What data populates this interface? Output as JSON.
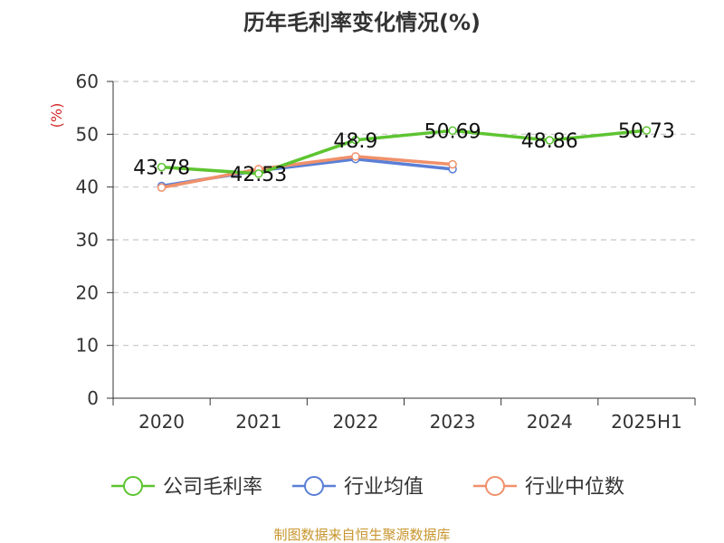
{
  "chart_data": {
    "type": "line",
    "title": "历年毛利率变化情况(%)",
    "ylabel": "(%)",
    "xlabel": "",
    "categories": [
      "2020",
      "2021",
      "2022",
      "2023",
      "2024",
      "2025H1"
    ],
    "ylim": [
      0,
      60
    ],
    "yticks": [
      "0",
      "10",
      "20",
      "30",
      "40",
      "50",
      "60"
    ],
    "grid": true,
    "legend_position": "bottom",
    "series": [
      {
        "name": "公司毛利率",
        "color": "#5dc431",
        "values": [
          43.78,
          42.53,
          48.9,
          50.69,
          48.86,
          50.73
        ],
        "labels": [
          "43.78",
          "42.53",
          "48.9",
          "50.69",
          "48.86",
          "50.73"
        ]
      },
      {
        "name": "行业均值",
        "color": "#5a7fd6",
        "values": [
          40.2,
          43.1,
          45.3,
          43.4,
          null,
          null
        ]
      },
      {
        "name": "行业中位数",
        "color": "#f0906a",
        "values": [
          39.9,
          43.4,
          45.8,
          44.3,
          null,
          null
        ]
      }
    ]
  },
  "source": "制图数据来自恒生聚源数据库",
  "colors": {
    "source": "#c8962e",
    "ylabel": "#d42a2a",
    "axis": "#333333",
    "grid": "#c8c8c8"
  }
}
